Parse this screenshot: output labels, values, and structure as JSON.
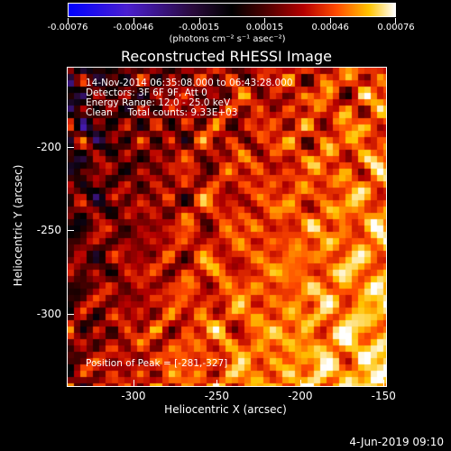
{
  "colorbar": {
    "ticks": [
      "-0.00076",
      "-0.00046",
      "-0.00015",
      "0.00015",
      "0.00046",
      "0.00076"
    ],
    "units": "(photons cm⁻² s⁻¹ asec⁻²)"
  },
  "info": {
    "line1": "14-Nov-2014 06:35:08.000 to 06:43:28.000",
    "line2": "Detectors: 3F 6F 9F, Att 0",
    "line3": "Energy Range: 12.0 - 25.0 keV",
    "line4": "Clean     Total counts: 9.33E+03",
    "peak": "Position of Peak = [-281,-327]"
  },
  "footer_date": "4-Jun-2019 09:10",
  "chart_data": {
    "type": "heatmap",
    "title": "Reconstructed RHESSI Image",
    "xlabel": "Heliocentric X (arcsec)",
    "ylabel": "Heliocentric Y (arcsec)",
    "xlim": [
      -340,
      -148
    ],
    "ylim": [
      -344,
      -152
    ],
    "x_ticks": [
      "-300",
      "-250",
      "-200",
      "-150"
    ],
    "y_ticks": [
      "-200",
      "-250",
      "-300"
    ],
    "x_tick_values": [
      -300,
      -250,
      -200,
      -150
    ],
    "y_tick_values": [
      -200,
      -250,
      -300
    ],
    "colorbar_range": [
      -0.00076,
      0.00076
    ],
    "colormap": [
      "#0000ff",
      "#4b1fcf",
      "#2a0a3c",
      "#000000",
      "#4a0000",
      "#b50000",
      "#ff4b00",
      "#ffc400",
      "#ffffff"
    ],
    "peak_position": [
      -281,
      -327
    ]
  }
}
